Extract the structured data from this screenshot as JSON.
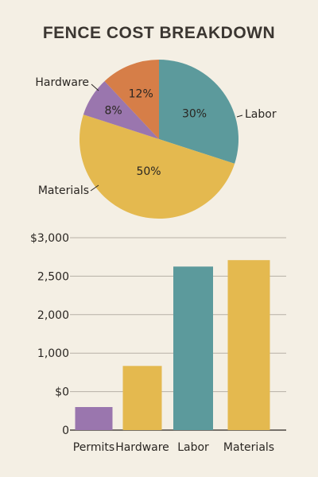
{
  "title": "FENCE COST BREAKDOWN",
  "colors": {
    "background": "#f4efe4",
    "labor": "#5c9a9c",
    "materials": "#e4b94f",
    "hardware": "#9a76ae",
    "permits": "#d67e48",
    "grid": "#b7b0a6",
    "axis": "#2a2622"
  },
  "chart_data": [
    {
      "type": "pie",
      "slices": [
        {
          "label": "Labor",
          "value": 30,
          "value_label": "30%",
          "color": "#5c9a9c"
        },
        {
          "label": "Materials",
          "value": 50,
          "value_label": "50%",
          "color": "#e4b94f"
        },
        {
          "label": "Hardware",
          "value": 8,
          "value_label": "8%",
          "color": "#9a76ae"
        },
        {
          "label": "",
          "value": 12,
          "value_label": "12%",
          "color": "#d67e48"
        }
      ]
    },
    {
      "type": "bar",
      "categories": [
        "Permits",
        "Hardware",
        "Labor",
        "Materials"
      ],
      "values": [
        360,
        1000,
        2550,
        2650
      ],
      "colors": [
        "#9a76ae",
        "#e4b94f",
        "#5c9a9c",
        "#e4b94f"
      ],
      "ytick_labels": [
        "0",
        "$0",
        "1,000",
        "2,000",
        "2,500",
        "$3,000"
      ],
      "ylim": [
        0,
        3000
      ],
      "grid": true
    }
  ]
}
